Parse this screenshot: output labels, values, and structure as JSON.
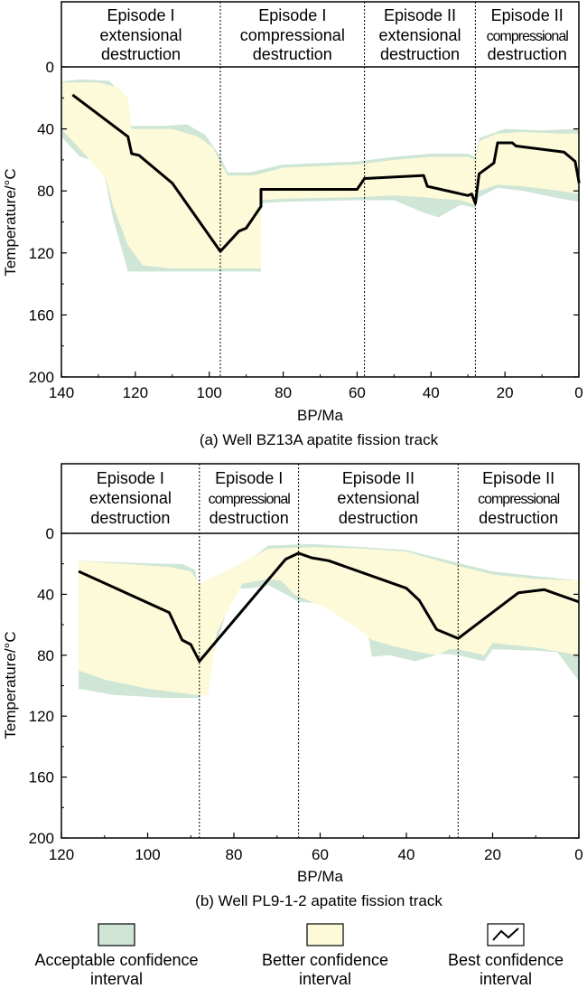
{
  "colors": {
    "acceptable": "#cfe6d6",
    "better": "#fdfad9",
    "best_line": "#000000"
  },
  "chart_data": [
    {
      "type": "area",
      "caption": "(a) Well BZ13A apatite fission track",
      "xlabel": "BP/Ma",
      "ylabel": "Temperature/°C",
      "xlim": [
        140,
        0
      ],
      "ylim": [
        0,
        200
      ],
      "x_ticks": [
        "140",
        "120",
        "100",
        "80",
        "60",
        "40",
        "20",
        "0"
      ],
      "y_ticks": [
        "0",
        "40",
        "80",
        "120",
        "160",
        "200"
      ],
      "episodes": [
        {
          "lines": [
            "Episode I",
            "extensional",
            "destruction"
          ],
          "small": false,
          "x_from": 140,
          "x_to": 97
        },
        {
          "lines": [
            "Episode I",
            "compressional",
            "destruction"
          ],
          "small": false,
          "x_from": 97,
          "x_to": 58
        },
        {
          "lines": [
            "Episode II",
            "extensional",
            "destruction"
          ],
          "small": false,
          "x_from": 58,
          "x_to": 28
        },
        {
          "lines": [
            "Episode II",
            "compressional",
            "destruction"
          ],
          "small": true,
          "x_from": 28,
          "x_to": 0
        }
      ],
      "dividers": [
        97,
        58,
        28
      ],
      "best_path": [
        [
          137,
          18
        ],
        [
          122,
          45
        ],
        [
          121,
          56
        ],
        [
          119,
          57
        ],
        [
          110,
          75
        ],
        [
          97,
          119
        ],
        [
          92,
          106
        ],
        [
          90,
          104
        ],
        [
          86,
          90
        ],
        [
          86,
          79
        ],
        [
          60,
          79
        ],
        [
          58,
          72
        ],
        [
          42,
          70
        ],
        [
          41,
          77
        ],
        [
          30,
          83
        ],
        [
          29,
          82
        ],
        [
          28,
          88
        ],
        [
          27,
          69
        ],
        [
          23,
          62
        ],
        [
          22,
          49
        ],
        [
          18,
          49
        ],
        [
          17,
          51
        ],
        [
          4,
          55
        ],
        [
          1,
          61
        ],
        [
          0,
          74
        ],
        [
          0,
          75
        ]
      ],
      "better_band": [
        [
          140,
          10
        ],
        [
          130,
          10
        ],
        [
          125,
          13
        ],
        [
          122,
          20
        ],
        [
          121,
          40
        ],
        [
          110,
          40
        ],
        [
          103,
          45
        ],
        [
          99,
          52
        ],
        [
          97,
          62
        ],
        [
          95,
          70
        ],
        [
          88,
          70
        ],
        [
          80,
          65
        ],
        [
          60,
          63
        ],
        [
          50,
          60
        ],
        [
          40,
          58
        ],
        [
          30,
          58
        ],
        [
          28,
          60
        ],
        [
          27,
          48
        ],
        [
          22,
          43
        ],
        [
          15,
          42
        ],
        [
          5,
          43
        ],
        [
          0,
          43
        ],
        [
          0,
          82
        ],
        [
          5,
          80
        ],
        [
          15,
          77
        ],
        [
          22,
          76
        ],
        [
          27,
          80
        ],
        [
          28,
          89
        ],
        [
          32,
          86
        ],
        [
          38,
          85
        ],
        [
          42,
          84
        ],
        [
          50,
          83
        ],
        [
          60,
          84
        ],
        [
          80,
          85
        ],
        [
          86,
          86
        ],
        [
          86,
          130
        ],
        [
          100,
          130
        ],
        [
          110,
          130
        ],
        [
          118,
          128
        ],
        [
          122,
          115
        ],
        [
          126,
          90
        ],
        [
          128,
          72
        ],
        [
          133,
          58
        ],
        [
          140,
          40
        ]
      ],
      "acceptable_band": [
        [
          142,
          10
        ],
        [
          135,
          8
        ],
        [
          127,
          9
        ],
        [
          124,
          17
        ],
        [
          122,
          38
        ],
        [
          112,
          38
        ],
        [
          106,
          37
        ],
        [
          101,
          44
        ],
        [
          97,
          58
        ],
        [
          95,
          68
        ],
        [
          89,
          68
        ],
        [
          80,
          63
        ],
        [
          60,
          61
        ],
        [
          50,
          58
        ],
        [
          40,
          56
        ],
        [
          30,
          56
        ],
        [
          28,
          58
        ],
        [
          27,
          46
        ],
        [
          20,
          40
        ],
        [
          10,
          41
        ],
        [
          0,
          40
        ],
        [
          0,
          87
        ],
        [
          5,
          85
        ],
        [
          15,
          80
        ],
        [
          22,
          78
        ],
        [
          27,
          84
        ],
        [
          28,
          91
        ],
        [
          32,
          89
        ],
        [
          38,
          97
        ],
        [
          42,
          94
        ],
        [
          50,
          86
        ],
        [
          60,
          86
        ],
        [
          80,
          87
        ],
        [
          86,
          88
        ],
        [
          86,
          132
        ],
        [
          98,
          132
        ],
        [
          110,
          132
        ],
        [
          122,
          132
        ],
        [
          126,
          98
        ],
        [
          129,
          62
        ],
        [
          135,
          58
        ],
        [
          142,
          40
        ]
      ]
    },
    {
      "type": "area",
      "caption": "(b) Well PL9-1-2 apatite fission track",
      "xlabel": "BP/Ma",
      "ylabel": "Temperature/°C",
      "xlim": [
        120,
        0
      ],
      "ylim": [
        0,
        200
      ],
      "x_ticks": [
        "120",
        "100",
        "80",
        "60",
        "40",
        "20",
        "0"
      ],
      "y_ticks": [
        "0",
        "40",
        "80",
        "120",
        "160",
        "200"
      ],
      "episodes": [
        {
          "lines": [
            "Episode I",
            "extensional",
            "destruction"
          ],
          "small": false,
          "x_from": 120,
          "x_to": 88
        },
        {
          "lines": [
            "Episode I",
            "compressional",
            "destruction"
          ],
          "small": true,
          "x_from": 88,
          "x_to": 65
        },
        {
          "lines": [
            "Episode II",
            "extensional",
            "destruction"
          ],
          "small": false,
          "x_from": 65,
          "x_to": 28
        },
        {
          "lines": [
            "Episode II",
            "compressional",
            "destruction"
          ],
          "small": true,
          "x_from": 28,
          "x_to": 0
        }
      ],
      "dividers": [
        88,
        65,
        28
      ],
      "best_path": [
        [
          116,
          25
        ],
        [
          95,
          52
        ],
        [
          92,
          70
        ],
        [
          90,
          73
        ],
        [
          88,
          84
        ],
        [
          68,
          17
        ],
        [
          65,
          13
        ],
        [
          62,
          16
        ],
        [
          58,
          18
        ],
        [
          40,
          36
        ],
        [
          37,
          44
        ],
        [
          33,
          63
        ],
        [
          28,
          69
        ],
        [
          14,
          39
        ],
        [
          8,
          37
        ],
        [
          0,
          45
        ]
      ],
      "better_band": [
        [
          116,
          18
        ],
        [
          95,
          22
        ],
        [
          90,
          25
        ],
        [
          88,
          33
        ],
        [
          80,
          22
        ],
        [
          72,
          10
        ],
        [
          62,
          9
        ],
        [
          50,
          10
        ],
        [
          40,
          12
        ],
        [
          30,
          20
        ],
        [
          20,
          27
        ],
        [
          10,
          30
        ],
        [
          0,
          31
        ],
        [
          0,
          80
        ],
        [
          10,
          75
        ],
        [
          20,
          72
        ],
        [
          22,
          80
        ],
        [
          28,
          76
        ],
        [
          30,
          76
        ],
        [
          33,
          80
        ],
        [
          37,
          78
        ],
        [
          43,
          74
        ],
        [
          48,
          70
        ],
        [
          52,
          61
        ],
        [
          58,
          50
        ],
        [
          62,
          45
        ],
        [
          66,
          40
        ],
        [
          69,
          31
        ],
        [
          72,
          30
        ],
        [
          78,
          33
        ],
        [
          84,
          65
        ],
        [
          86,
          107
        ],
        [
          100,
          102
        ],
        [
          110,
          96
        ],
        [
          116,
          90
        ]
      ],
      "acceptable_band": [
        [
          116,
          18
        ],
        [
          96,
          20
        ],
        [
          92,
          20
        ],
        [
          89,
          24
        ],
        [
          88,
          40
        ],
        [
          86,
          35
        ],
        [
          80,
          25
        ],
        [
          72,
          8
        ],
        [
          62,
          7
        ],
        [
          50,
          9
        ],
        [
          40,
          11
        ],
        [
          30,
          18
        ],
        [
          20,
          25
        ],
        [
          10,
          28
        ],
        [
          0,
          31
        ],
        [
          0,
          97
        ],
        [
          5,
          78
        ],
        [
          10,
          77
        ],
        [
          20,
          76
        ],
        [
          22,
          84
        ],
        [
          28,
          80
        ],
        [
          32,
          79
        ],
        [
          38,
          84
        ],
        [
          44,
          80
        ],
        [
          48,
          81
        ],
        [
          49,
          64
        ],
        [
          55,
          50
        ],
        [
          60,
          46
        ],
        [
          65,
          45
        ],
        [
          68,
          40
        ],
        [
          72,
          34
        ],
        [
          76,
          36
        ],
        [
          80,
          36
        ],
        [
          88,
          108
        ],
        [
          96,
          108
        ],
        [
          108,
          106
        ],
        [
          116,
          102
        ]
      ]
    }
  ],
  "legend": {
    "items": [
      {
        "label_lines": [
          "Acceptable confidence",
          "interval"
        ]
      },
      {
        "label_lines": [
          "Better confidence",
          "interval"
        ]
      },
      {
        "label_lines": [
          "Best confidence",
          "interval"
        ]
      }
    ]
  }
}
